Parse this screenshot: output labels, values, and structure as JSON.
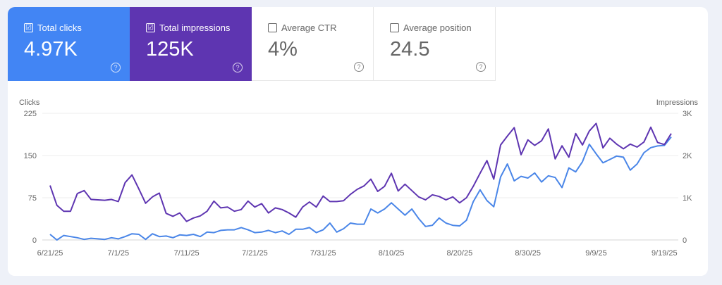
{
  "metrics": [
    {
      "label": "Total clicks",
      "value": "4.97K",
      "checked": true,
      "color": "#4285f4"
    },
    {
      "label": "Total impressions",
      "value": "125K",
      "checked": true,
      "color": "#5e35b1"
    },
    {
      "label": "Average CTR",
      "value": "4%",
      "checked": false
    },
    {
      "label": "Average position",
      "value": "24.5",
      "checked": false
    }
  ],
  "icons": {
    "checked": "☑",
    "help": "?"
  },
  "chart_data": {
    "type": "line",
    "ylabel_left": "Clicks",
    "ylabel_right": "Impressions",
    "left_ticks": [
      "0",
      "75",
      "150",
      "225"
    ],
    "right_ticks": [
      "0",
      "1K",
      "2K",
      "3K"
    ],
    "ylim_left": [
      0,
      225
    ],
    "ylim_right": [
      0,
      3000
    ],
    "x_ticks": [
      "6/21/25",
      "7/1/25",
      "7/11/25",
      "7/21/25",
      "7/31/25",
      "8/10/25",
      "8/20/25",
      "8/30/25",
      "9/9/25",
      "9/19/25"
    ],
    "grid": true,
    "series": [
      {
        "name": "Clicks",
        "axis": "left",
        "color": "#4a86e8",
        "values": [
          10,
          0,
          8,
          6,
          4,
          1,
          3,
          2,
          1,
          4,
          2,
          6,
          11,
          10,
          1,
          11,
          6,
          7,
          4,
          9,
          8,
          10,
          6,
          14,
          13,
          17,
          18,
          18,
          22,
          18,
          13,
          14,
          17,
          13,
          16,
          10,
          19,
          19,
          22,
          13,
          18,
          30,
          14,
          20,
          30,
          28,
          28,
          55,
          48,
          55,
          66,
          55,
          44,
          55,
          38,
          24,
          26,
          39,
          30,
          26,
          25,
          35,
          68,
          89,
          70,
          59,
          112,
          135,
          105,
          113,
          110,
          119,
          103,
          114,
          111,
          93,
          128,
          121,
          139,
          170,
          153,
          137,
          143,
          149,
          147,
          124,
          135,
          155,
          164,
          167,
          168,
          183
        ]
      },
      {
        "name": "Impressions",
        "axis": "right",
        "color": "#5e35b1",
        "values": [
          1290,
          820,
          680,
          680,
          1100,
          1170,
          960,
          950,
          940,
          960,
          910,
          1360,
          1540,
          1210,
          870,
          1020,
          1110,
          630,
          560,
          640,
          440,
          520,
          570,
          680,
          920,
          760,
          780,
          680,
          720,
          920,
          780,
          860,
          640,
          760,
          720,
          640,
          540,
          780,
          900,
          780,
          1040,
          910,
          910,
          930,
          1080,
          1200,
          1280,
          1440,
          1150,
          1270,
          1580,
          1160,
          1320,
          1170,
          1020,
          950,
          1070,
          1030,
          950,
          1020,
          880,
          1000,
          1270,
          1580,
          1880,
          1440,
          2250,
          2460,
          2660,
          2020,
          2370,
          2240,
          2350,
          2630,
          1920,
          2230,
          1960,
          2520,
          2250,
          2580,
          2760,
          2180,
          2410,
          2270,
          2160,
          2270,
          2200,
          2320,
          2670,
          2310,
          2260,
          2520
        ]
      }
    ]
  }
}
